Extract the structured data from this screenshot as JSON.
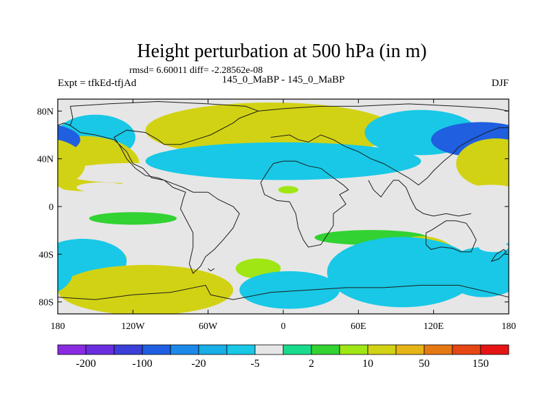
{
  "chart_data": {
    "type": "heatmap",
    "title": "Height perturbation at 500 hPa (in m)",
    "stats": "rmsd= 6.60011 diff= -2.28562e-08",
    "left_label": "Expt = tfkEd-tfjAd",
    "center_label": "145_0_MaBP - 145_0_MaBP",
    "right_label": "DJF",
    "x_ticks": [
      "180",
      "120W",
      "60W",
      "0",
      "60E",
      "120E",
      "180"
    ],
    "x_tick_values": [
      -180,
      -120,
      -60,
      0,
      60,
      120,
      180
    ],
    "y_ticks": [
      "80N",
      "40N",
      "0",
      "40S",
      "80S"
    ],
    "y_tick_values": [
      80,
      40,
      0,
      -40,
      -80
    ],
    "xlim": [
      -180,
      180
    ],
    "ylim": [
      -90,
      90
    ],
    "colorbar": {
      "colors": [
        "#8a2be2",
        "#6a2ee0",
        "#3b3fd8",
        "#1f5fe0",
        "#1c88ea",
        "#18aee8",
        "#18c8e6",
        "#e6e6e6",
        "#18dc8c",
        "#32d232",
        "#a0e614",
        "#d2d214",
        "#e6b414",
        "#e67814",
        "#e64614",
        "#e61414"
      ],
      "labels": [
        "-200",
        "-100",
        "-20",
        "-5",
        "2",
        "10",
        "50",
        "150"
      ]
    },
    "blobs": [
      {
        "lon": -164,
        "lat": 60,
        "rlon": 18,
        "rlat": 11,
        "value": -60
      },
      {
        "lon": -150,
        "lat": 58,
        "rlon": 32,
        "rlat": 18,
        "value": -10
      },
      {
        "lon": -160,
        "lat": 36,
        "rlon": 30,
        "rlat": 14,
        "value": 60
      },
      {
        "lon": -160,
        "lat": 36,
        "rlon": 45,
        "rlat": 22,
        "value": 12
      },
      {
        "lon": -145,
        "lat": 16,
        "rlon": 20,
        "rlat": 4,
        "value": -4
      },
      {
        "lon": -120,
        "lat": 28,
        "rlon": 55,
        "rlat": 8,
        "value": -4
      },
      {
        "lon": -18,
        "lat": 66,
        "rlon": 75,
        "rlat": 14,
        "value": 40
      },
      {
        "lon": -10,
        "lat": 64,
        "rlon": 100,
        "rlat": 22,
        "value": 12
      },
      {
        "lon": 10,
        "lat": 38,
        "rlon": 85,
        "rlat": 11,
        "value": -40
      },
      {
        "lon": 0,
        "lat": 38,
        "rlon": 110,
        "rlat": 15,
        "value": -8
      },
      {
        "lon": 110,
        "lat": 62,
        "rlon": 45,
        "rlat": 18,
        "value": -8
      },
      {
        "lon": 158,
        "lat": 56,
        "rlon": 40,
        "rlat": 14,
        "value": -60
      },
      {
        "lon": 172,
        "lat": 36,
        "rlon": 22,
        "rlat": 13,
        "value": 60
      },
      {
        "lon": 170,
        "lat": 36,
        "rlon": 32,
        "rlat": 20,
        "value": 12
      },
      {
        "lon": 166,
        "lat": 14,
        "rlon": 18,
        "rlat": 4,
        "value": -4
      },
      {
        "lon": 4,
        "lat": 14,
        "rlon": 8,
        "rlat": 3,
        "value": 5
      },
      {
        "lon": -120,
        "lat": -10,
        "rlon": 35,
        "rlat": 5,
        "value": 4
      },
      {
        "lon": -40,
        "lat": -22,
        "rlon": 55,
        "rlat": 10,
        "value": -5
      },
      {
        "lon": 70,
        "lat": -26,
        "rlon": 45,
        "rlat": 6,
        "value": 4
      },
      {
        "lon": -155,
        "lat": -44,
        "rlon": 30,
        "rlat": 12,
        "value": 14
      },
      {
        "lon": -160,
        "lat": -46,
        "rlon": 35,
        "rlat": 18,
        "value": -6
      },
      {
        "lon": -100,
        "lat": -70,
        "rlon": 42,
        "rlat": 14,
        "value": 40
      },
      {
        "lon": -110,
        "lat": -70,
        "rlon": 70,
        "rlat": 20,
        "value": 10
      },
      {
        "lon": -20,
        "lat": -52,
        "rlon": 18,
        "rlat": 8,
        "value": 6
      },
      {
        "lon": 5,
        "lat": -70,
        "rlon": 40,
        "rlat": 15,
        "value": -6
      },
      {
        "lon": 110,
        "lat": -50,
        "rlon": 20,
        "rlat": 14,
        "value": 40
      },
      {
        "lon": 110,
        "lat": -48,
        "rlon": 32,
        "rlat": 22,
        "value": 12
      },
      {
        "lon": 95,
        "lat": -55,
        "rlon": 60,
        "rlat": 28,
        "value": -6
      },
      {
        "lon": 165,
        "lat": -52,
        "rlon": 16,
        "rlat": 12,
        "value": -40
      },
      {
        "lon": 160,
        "lat": -55,
        "rlon": 32,
        "rlat": 20,
        "value": -8
      },
      {
        "lon": 168,
        "lat": -34,
        "rlon": 12,
        "rlat": 4,
        "value": -4
      }
    ],
    "coastlines": [
      [
        [
          -170,
          84
        ],
        [
          -140,
          86
        ],
        [
          -100,
          88
        ],
        [
          -60,
          86
        ],
        [
          -30,
          84
        ],
        [
          -20,
          80
        ],
        [
          -35,
          74
        ],
        [
          -40,
          70
        ],
        [
          -58,
          60
        ],
        [
          -70,
          56
        ],
        [
          -82,
          52
        ],
        [
          -95,
          52
        ],
        [
          -100,
          56
        ],
        [
          -110,
          62
        ],
        [
          -125,
          64
        ],
        [
          -135,
          58
        ],
        [
          -130,
          50
        ],
        [
          -125,
          40
        ],
        [
          -118,
          32
        ],
        [
          -110,
          26
        ],
        [
          -100,
          24
        ],
        [
          -90,
          20
        ],
        [
          -80,
          16
        ],
        [
          -72,
          12
        ],
        [
          -60,
          12
        ],
        [
          -52,
          6
        ],
        [
          -40,
          0
        ],
        [
          -35,
          -6
        ],
        [
          -40,
          -18
        ],
        [
          -48,
          -28
        ],
        [
          -55,
          -36
        ],
        [
          -62,
          -42
        ],
        [
          -66,
          -50
        ],
        [
          -72,
          -56
        ],
        [
          -75,
          -48
        ],
        [
          -72,
          -34
        ],
        [
          -72,
          -22
        ],
        [
          -78,
          -10
        ],
        [
          -82,
          -2
        ],
        [
          -80,
          6
        ],
        [
          -78,
          12
        ],
        [
          -88,
          16
        ],
        [
          -95,
          22
        ],
        [
          -105,
          24
        ],
        [
          -112,
          32
        ],
        [
          -120,
          36
        ],
        [
          -125,
          46
        ],
        [
          -135,
          56
        ],
        [
          -150,
          60
        ],
        [
          -162,
          62
        ],
        [
          -170,
          68
        ],
        [
          -168,
          74
        ],
        [
          -170,
          84
        ]
      ],
      [
        [
          -20,
          80
        ],
        [
          0,
          82
        ],
        [
          30,
          84
        ],
        [
          60,
          84
        ],
        [
          100,
          86
        ],
        [
          140,
          84
        ],
        [
          170,
          82
        ],
        [
          180,
          80
        ]
      ],
      [
        [
          -10,
          58
        ],
        [
          5,
          60
        ],
        [
          12,
          56
        ],
        [
          20,
          54
        ],
        [
          30,
          60
        ],
        [
          40,
          56
        ],
        [
          50,
          50
        ],
        [
          60,
          46
        ],
        [
          70,
          40
        ],
        [
          80,
          36
        ],
        [
          90,
          30
        ],
        [
          100,
          24
        ],
        [
          108,
          18
        ],
        [
          115,
          24
        ],
        [
          120,
          30
        ],
        [
          128,
          38
        ],
        [
          135,
          44
        ],
        [
          140,
          50
        ],
        [
          150,
          56
        ],
        [
          162,
          62
        ],
        [
          172,
          66
        ],
        [
          180,
          66
        ]
      ],
      [
        [
          -8,
          36
        ],
        [
          0,
          38
        ],
        [
          10,
          38
        ],
        [
          20,
          34
        ],
        [
          30,
          32
        ],
        [
          35,
          28
        ],
        [
          40,
          24
        ],
        [
          48,
          18
        ],
        [
          52,
          14
        ],
        [
          45,
          10
        ],
        [
          50,
          2
        ],
        [
          40,
          -6
        ],
        [
          40,
          -16
        ],
        [
          35,
          -24
        ],
        [
          30,
          -32
        ],
        [
          20,
          -34
        ],
        [
          16,
          -28
        ],
        [
          12,
          -18
        ],
        [
          10,
          -6
        ],
        [
          5,
          4
        ],
        [
          -5,
          5
        ],
        [
          -15,
          10
        ],
        [
          -18,
          20
        ],
        [
          -12,
          30
        ],
        [
          -8,
          36
        ]
      ],
      [
        [
          68,
          22
        ],
        [
          72,
          14
        ],
        [
          78,
          8
        ],
        [
          82,
          14
        ],
        [
          88,
          22
        ],
        [
          92,
          22
        ],
        [
          98,
          16
        ],
        [
          102,
          6
        ],
        [
          106,
          -2
        ],
        [
          112,
          -6
        ],
        [
          120,
          -8
        ],
        [
          130,
          -6
        ],
        [
          140,
          -8
        ],
        [
          150,
          -6
        ]
      ],
      [
        [
          114,
          -22
        ],
        [
          114,
          -32
        ],
        [
          118,
          -36
        ],
        [
          126,
          -34
        ],
        [
          135,
          -35
        ],
        [
          142,
          -38
        ],
        [
          150,
          -38
        ],
        [
          154,
          -28
        ],
        [
          150,
          -20
        ],
        [
          146,
          -14
        ],
        [
          138,
          -12
        ],
        [
          130,
          -12
        ],
        [
          124,
          -16
        ],
        [
          118,
          -20
        ],
        [
          114,
          -22
        ]
      ],
      [
        [
          166,
          -46
        ],
        [
          172,
          -44
        ],
        [
          178,
          -38
        ],
        [
          176,
          -36
        ],
        [
          170,
          -40
        ],
        [
          166,
          -46
        ]
      ],
      [
        [
          -180,
          -76
        ],
        [
          -150,
          -78
        ],
        [
          -120,
          -74
        ],
        [
          -90,
          -72
        ],
        [
          -62,
          -66
        ],
        [
          -58,
          -74
        ],
        [
          -40,
          -78
        ],
        [
          -10,
          -72
        ],
        [
          20,
          -70
        ],
        [
          50,
          -68
        ],
        [
          80,
          -68
        ],
        [
          110,
          -66
        ],
        [
          140,
          -66
        ],
        [
          165,
          -72
        ],
        [
          180,
          -76
        ]
      ],
      [
        [
          -180,
          68
        ],
        [
          -175,
          70
        ],
        [
          -170,
          68
        ]
      ],
      [
        [
          -55,
          -52
        ],
        [
          -58,
          -54
        ],
        [
          -60,
          -52
        ]
      ]
    ]
  }
}
